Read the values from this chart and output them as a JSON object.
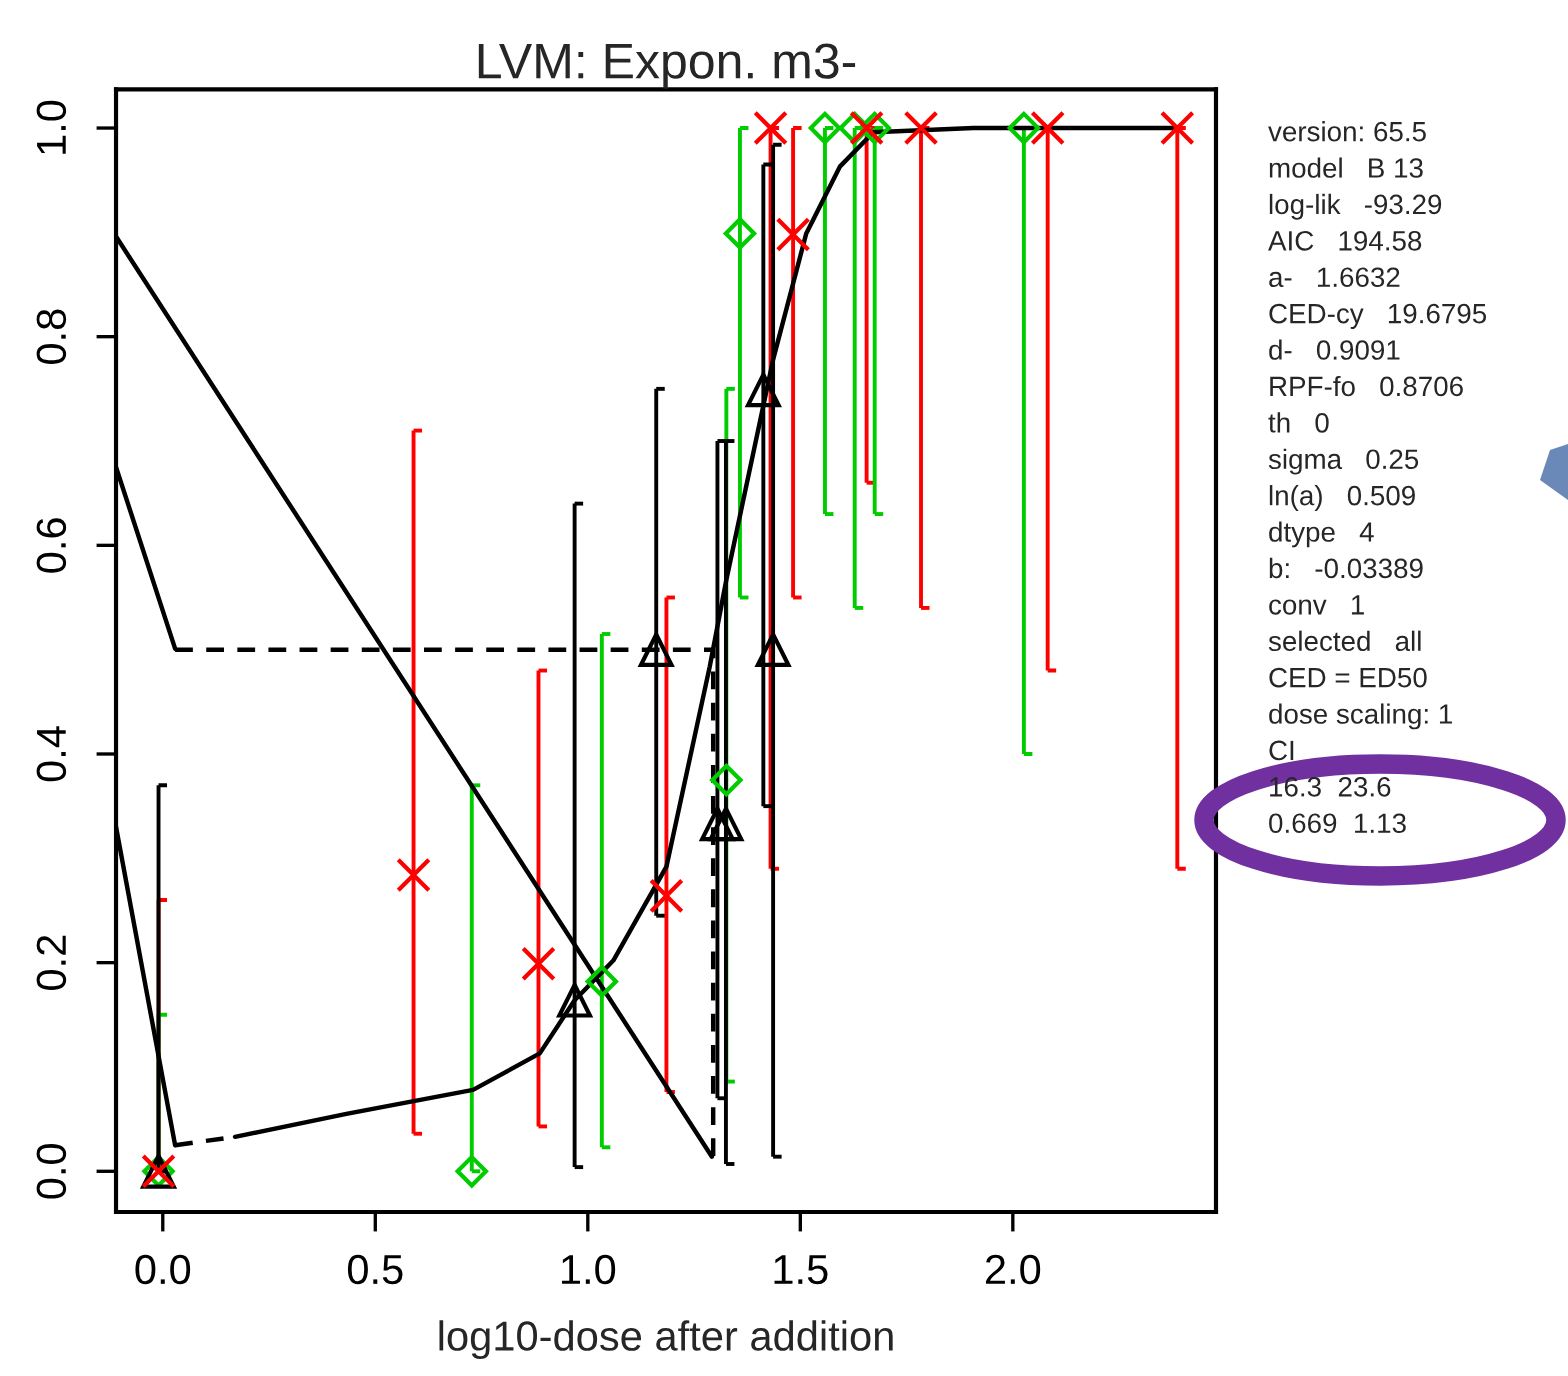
{
  "chart_data": {
    "type": "scatter",
    "title": "LVM: Expon. m3-",
    "xlabel": "log10-dose after addition",
    "xlim": [
      -0.11,
      2.478
    ],
    "ylim": [
      -0.039,
      1.037
    ],
    "xticks": [
      {
        "value": 0,
        "label": "0.0"
      },
      {
        "value": 0.5,
        "label": "0.5"
      },
      {
        "value": 1,
        "label": "1.0"
      },
      {
        "value": 1.5,
        "label": "1.5"
      },
      {
        "value": 2,
        "label": "2.0"
      }
    ],
    "yticks": [
      {
        "value": 0,
        "label": "0.0"
      },
      {
        "value": 0.2,
        "label": "0.2"
      },
      {
        "value": 0.4,
        "label": "0.4"
      },
      {
        "value": 0.6,
        "label": "0.6"
      },
      {
        "value": 0.8,
        "label": "0.8"
      },
      {
        "value": 1,
        "label": "1.0"
      }
    ],
    "grid": false,
    "series": [
      {
        "color": "#ff0000",
        "marker": "cross",
        "x": [
          -0.01,
          0.59,
          0.884,
          1.185,
          1.43,
          1.483,
          1.656,
          1.784,
          2.082,
          2.387
        ],
        "values": [
          0,
          0.284,
          0.199,
          0.264,
          1.0,
          0.898,
          1.0,
          1.0,
          1.0,
          1.0
        ],
        "errors": [
          [
            0,
            0.26
          ],
          [
            0.036,
            0.71
          ],
          [
            0.043,
            0.48
          ],
          [
            0.076,
            0.55
          ],
          [
            0.29,
            1.0
          ],
          [
            0.55,
            1.0
          ],
          [
            0.66,
            1.0
          ],
          [
            0.54,
            1.0
          ],
          [
            0.48,
            1.0
          ],
          [
            0.29,
            1.0
          ]
        ]
      },
      {
        "color": "#00cc00",
        "marker": "diamond",
        "x": [
          -0.01,
          0.727,
          1.033,
          1.326,
          1.358,
          1.558,
          1.628,
          1.675,
          2.026
        ],
        "values": [
          0,
          0,
          0.182,
          0.375,
          0.899,
          1.0,
          1.0,
          1.0,
          1.0
        ],
        "errors": [
          [
            0,
            0.15
          ],
          [
            0,
            0.37
          ],
          [
            0.023,
            0.515
          ],
          [
            0.086,
            0.75
          ],
          [
            0.55,
            1.0
          ],
          [
            0.63,
            1.0
          ],
          [
            0.54,
            1.0
          ],
          [
            0.63,
            1.0
          ],
          [
            0.4,
            1.0
          ]
        ]
      },
      {
        "color": "#000000",
        "marker": "triangle",
        "x": [
          -0.01,
          0.969,
          1.161,
          1.305,
          1.325,
          1.413,
          1.436
        ],
        "values": [
          0,
          0.164,
          0.5,
          0.333,
          0.333,
          0.749,
          0.5
        ],
        "errors": [
          [
            0,
            0.37
          ],
          [
            0.004,
            0.64
          ],
          [
            0.245,
            0.75
          ],
          [
            0.07,
            0.7
          ],
          [
            0.007,
            0.7
          ],
          [
            0.35,
            0.965
          ],
          [
            0.014,
            0.984
          ]
        ]
      },
      {
        "type": "line",
        "color": "#000000",
        "line_style": "dashed",
        "x": [
          0.029,
          0.17
        ],
        "values": [
          0.025,
          0.033
        ]
      },
      {
        "type": "line",
        "color": "#000000",
        "line_style": "solid",
        "x": [
          0.17,
          0.432,
          0.73,
          0.887,
          0.969,
          1.06,
          1.185,
          1.287,
          1.326,
          1.436,
          1.514,
          1.593,
          1.672,
          1.907,
          2.387
        ],
        "values": [
          0.033,
          0.055,
          0.078,
          0.113,
          0.164,
          0.202,
          0.292,
          0.484,
          0.567,
          0.778,
          0.899,
          0.963,
          0.996,
          1.0,
          1.0
        ]
      },
      {
        "type": "line",
        "color": "#000000",
        "line_style": "solid",
        "x": [
          -0.11,
          1.292
        ],
        "values": [
          0.896,
          0.014
        ]
      },
      {
        "type": "line",
        "color": "#000000",
        "line_style": "solid",
        "x": [
          -0.11,
          0.029
        ],
        "values": [
          0.675,
          0.501
        ]
      },
      {
        "type": "line",
        "color": "#000000",
        "line_style": "solid",
        "x": [
          -0.11,
          0.029
        ],
        "values": [
          0.33,
          0.025
        ]
      },
      {
        "type": "line",
        "color": "#000000",
        "line_style": "dashed",
        "x": [
          0.029,
          1.295,
          1.295
        ],
        "values": [
          0.5,
          0.5,
          0.012
        ]
      }
    ],
    "annotations": [
      "version: 65.5",
      "model   B 13",
      "log-lik   -93.29",
      "AIC   194.58",
      "a-   1.6632",
      "CED-cy   19.6795",
      "d-   0.9091",
      "RPF-fo   0.8706",
      "th   0",
      "sigma   0.25",
      "ln(a)   0.509",
      "dtype   4",
      "b:   -0.03389",
      "conv   1",
      "selected   all",
      "CED = ED50",
      "dose scaling: 1",
      "CI",
      "16.3  23.6",
      "0.669  1.13"
    ]
  }
}
